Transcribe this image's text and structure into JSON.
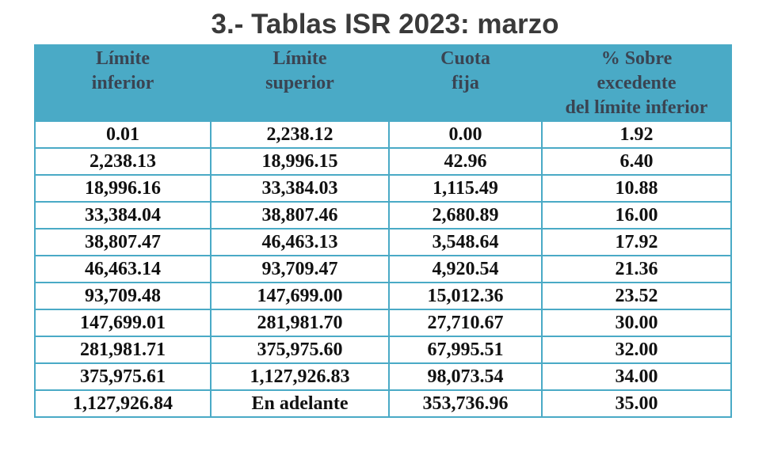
{
  "title": "3.- Tablas ISR 2023: marzo",
  "headers": [
    [
      "Límite",
      "inferior"
    ],
    [
      "Límite",
      "superior"
    ],
    [
      "Cuota",
      "fija"
    ],
    [
      "% Sobre",
      "excedente",
      "del límite inferior"
    ]
  ],
  "rows": [
    [
      "0.01",
      "2,238.12",
      "0.00",
      "1.92"
    ],
    [
      "2,238.13",
      "18,996.15",
      "42.96",
      "6.40"
    ],
    [
      "18,996.16",
      "33,384.03",
      "1,115.49",
      "10.88"
    ],
    [
      "33,384.04",
      "38,807.46",
      "2,680.89",
      "16.00"
    ],
    [
      "38,807.47",
      "46,463.13",
      "3,548.64",
      "17.92"
    ],
    [
      "46,463.14",
      "93,709.47",
      "4,920.54",
      "21.36"
    ],
    [
      "93,709.48",
      "147,699.00",
      "15,012.36",
      "23.52"
    ],
    [
      "147,699.01",
      "281,981.70",
      "27,710.67",
      "30.00"
    ],
    [
      "281,981.71",
      "375,975.60",
      "67,995.51",
      "32.00"
    ],
    [
      "375,975.61",
      "1,127,926.83",
      "98,073.54",
      "34.00"
    ],
    [
      "1,127,926.84",
      "En adelante",
      "353,736.96",
      "35.00"
    ]
  ],
  "colors": {
    "header_bg": "#4aaac6",
    "header_text": "#3a4452",
    "title_text": "#3a3a3a",
    "border": "#4aaac6"
  }
}
